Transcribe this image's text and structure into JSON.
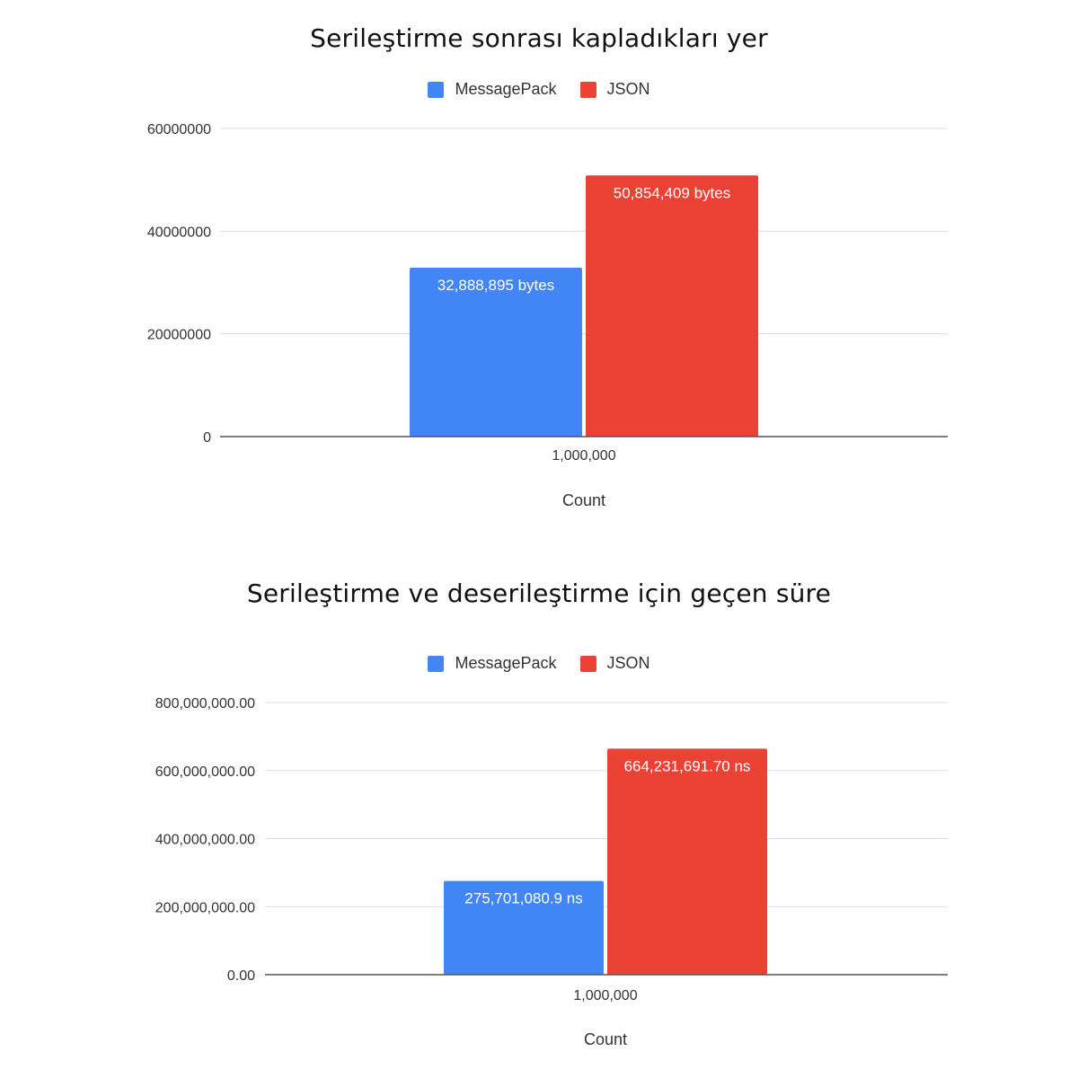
{
  "colors": {
    "messagepack": "#4285f4",
    "json": "#ea4335",
    "gridline": "#dddddd",
    "baseline": "#555555"
  },
  "chart_data": [
    {
      "type": "bar",
      "title": "Serileştirme sonrası kapladıkları yer",
      "xlabel": "Count",
      "ylabel": "",
      "categories": [
        "1,000,000"
      ],
      "series": [
        {
          "name": "MessagePack",
          "values": [
            32888895
          ],
          "labels": [
            "32,888,895 bytes"
          ]
        },
        {
          "name": "JSON",
          "values": [
            50854409
          ],
          "labels": [
            "50,854,409 bytes"
          ]
        }
      ],
      "ylim": [
        0,
        60000000
      ],
      "yticks": [
        0,
        20000000,
        40000000,
        60000000
      ],
      "ytick_labels": [
        "0",
        "20000000",
        "40000000",
        "60000000"
      ],
      "grid": true,
      "legend": "top-center"
    },
    {
      "type": "bar",
      "title": "Serileştirme ve deserileştirme için geçen süre",
      "xlabel": "Count",
      "ylabel": "",
      "categories": [
        "1,000,000"
      ],
      "series": [
        {
          "name": "MessagePack",
          "values": [
            275701080.9
          ],
          "labels": [
            "275,701,080.9 ns"
          ]
        },
        {
          "name": "JSON",
          "values": [
            664231691.7
          ],
          "labels": [
            "664,231,691.70 ns"
          ]
        }
      ],
      "ylim": [
        0,
        800000000
      ],
      "yticks": [
        0,
        200000000,
        400000000,
        600000000,
        800000000
      ],
      "ytick_labels": [
        "0.00",
        "200,000,000.00",
        "400,000,000.00",
        "600,000,000.00",
        "800,000,000.00"
      ],
      "grid": true,
      "legend": "top-center"
    }
  ]
}
